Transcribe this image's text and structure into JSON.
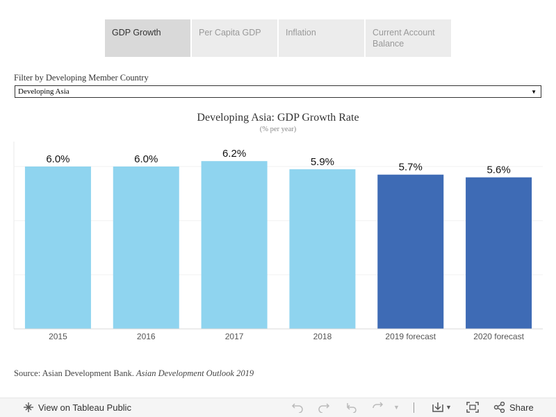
{
  "tabs": [
    {
      "label": "GDP Growth",
      "active": true
    },
    {
      "label": "Per Capita GDP",
      "active": false
    },
    {
      "label": "Inflation",
      "active": false
    },
    {
      "label": "Current Account Balance",
      "active": false
    }
  ],
  "filter": {
    "label": "Filter by Developing Member Country",
    "value": "Developing Asia"
  },
  "chart_data": {
    "type": "bar",
    "title": "Developing Asia: GDP Growth Rate",
    "subtitle": "(% per year)",
    "categories": [
      "2015",
      "2016",
      "2017",
      "2018",
      "2019 forecast",
      "2020 forecast"
    ],
    "values": [
      6.0,
      6.0,
      6.2,
      5.9,
      5.7,
      5.6
    ],
    "data_labels": [
      "6.0%",
      "6.0%",
      "6.2%",
      "5.9%",
      "5.7%",
      "5.6%"
    ],
    "colors": [
      "#8fd4ef",
      "#8fd4ef",
      "#8fd4ef",
      "#8fd4ef",
      "#3e6bb5",
      "#3e6bb5"
    ],
    "ylim": [
      0,
      7
    ],
    "gridlines": [
      2,
      4,
      6
    ],
    "grid": true,
    "xlabel": "",
    "ylabel": ""
  },
  "source": {
    "prefix": "Source: Asian Development Bank. ",
    "publication": "Asian Development Outlook 2019"
  },
  "footer": {
    "view_label": "View on Tableau Public",
    "share_label": "Share"
  }
}
